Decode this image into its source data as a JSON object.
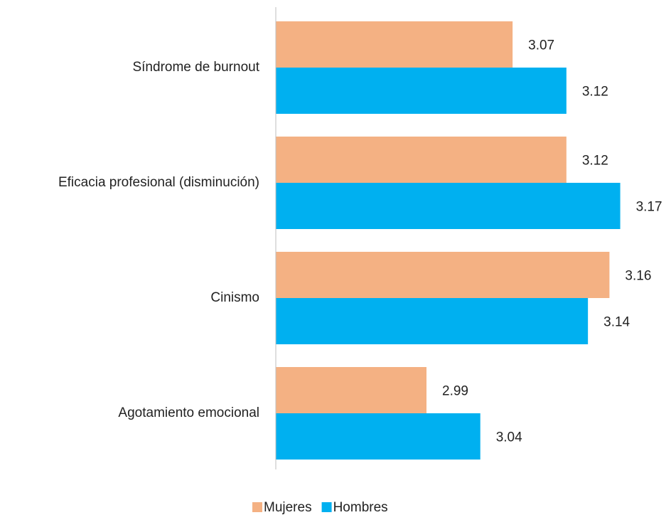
{
  "chart_data": {
    "type": "hbar",
    "categories": [
      "Síndrome de burnout",
      "Eficacia profesional (disminución)",
      "Cinismo",
      "Agotamiento emocional"
    ],
    "series": [
      {
        "name": "Mujeres",
        "color": "#f4b183",
        "values": [
          3.07,
          3.12,
          3.16,
          2.99
        ]
      },
      {
        "name": "Hombres",
        "color": "#00b0f0",
        "values": [
          3.12,
          3.17,
          3.14,
          3.04
        ]
      }
    ],
    "xlim": [
      2.85,
      3.2
    ],
    "legend": "bottom"
  }
}
